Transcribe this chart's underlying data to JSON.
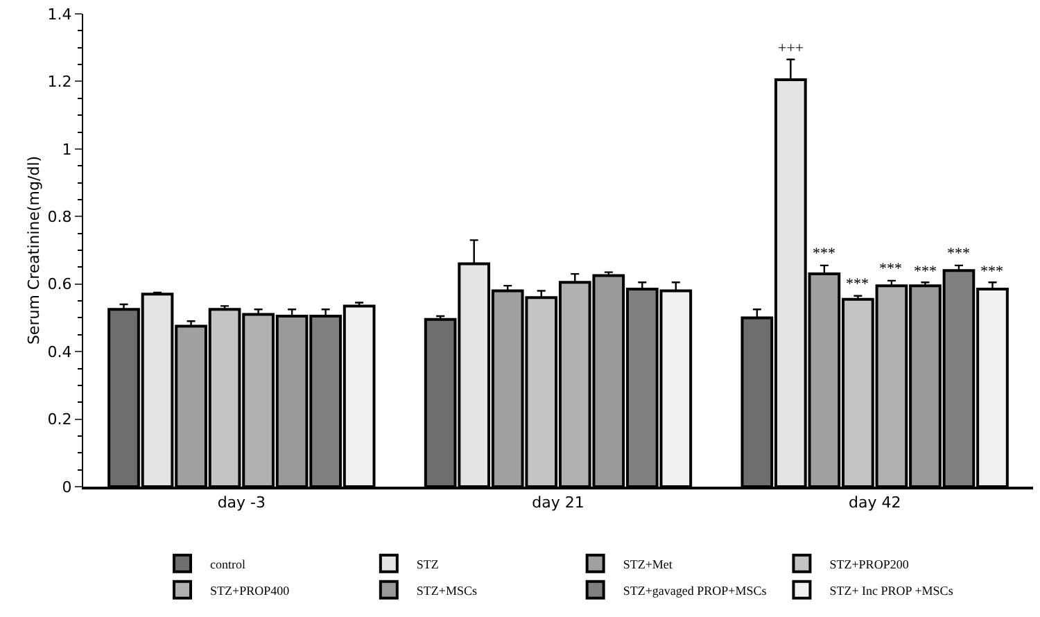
{
  "chart_data": {
    "type": "bar",
    "ylabel": "Serum Creatinine(mg/dl)",
    "categories": [
      "day -3",
      "day 21",
      "day 42"
    ],
    "ylim": [
      0,
      1.4
    ],
    "yticks": [
      0,
      0.2,
      0.4,
      0.6,
      0.8,
      1,
      1.2,
      1.4
    ],
    "grid": false,
    "legend": "bottom",
    "series": [
      {
        "name": "control",
        "color": "#6e6e6e",
        "values": [
          0.525,
          0.495,
          0.5
        ],
        "errors": [
          [
            0.525,
            0.54
          ],
          [
            0.495,
            0.505
          ],
          [
            0.5,
            0.525
          ]
        ]
      },
      {
        "name": "STZ",
        "color": "#e4e4e4",
        "values": [
          0.57,
          0.66,
          1.205
        ],
        "errors": [
          [
            0.57,
            0.575
          ],
          [
            0.66,
            0.73
          ],
          [
            1.205,
            1.265
          ]
        ]
      },
      {
        "name": "STZ+Met",
        "color": "#a0a0a0",
        "values": [
          0.475,
          0.58,
          0.63
        ],
        "errors": [
          [
            0.475,
            0.49
          ],
          [
            0.58,
            0.595
          ],
          [
            0.63,
            0.655
          ]
        ]
      },
      {
        "name": "STZ+PROP200",
        "color": "#c4c4c4",
        "values": [
          0.525,
          0.56,
          0.555
        ],
        "errors": [
          [
            0.525,
            0.535
          ],
          [
            0.56,
            0.58
          ],
          [
            0.555,
            0.565
          ]
        ]
      },
      {
        "name": "STZ+PROP400",
        "color": "#b0b0b0",
        "values": [
          0.51,
          0.605,
          0.595
        ],
        "errors": [
          [
            0.51,
            0.525
          ],
          [
            0.605,
            0.63
          ],
          [
            0.595,
            0.61
          ]
        ]
      },
      {
        "name": "STZ+MSCs",
        "color": "#999999",
        "values": [
          0.505,
          0.625,
          0.595
        ],
        "errors": [
          [
            0.505,
            0.525
          ],
          [
            0.625,
            0.635
          ],
          [
            0.595,
            0.605
          ]
        ]
      },
      {
        "name": "STZ+gavaged PROP+MSCs",
        "color": "#808080",
        "values": [
          0.505,
          0.585,
          0.64
        ],
        "errors": [
          [
            0.505,
            0.525
          ],
          [
            0.585,
            0.605
          ],
          [
            0.64,
            0.655
          ]
        ]
      },
      {
        "name": "STZ+ Inc PROP +MSCs",
        "color": "#f0f0f0",
        "values": [
          0.535,
          0.58,
          0.585
        ],
        "errors": [
          [
            0.535,
            0.545
          ],
          [
            0.58,
            0.605
          ],
          [
            0.585,
            0.605
          ]
        ]
      }
    ],
    "annotations": [
      "+++",
      "***",
      "***",
      "***",
      "***",
      "***",
      "***"
    ]
  }
}
